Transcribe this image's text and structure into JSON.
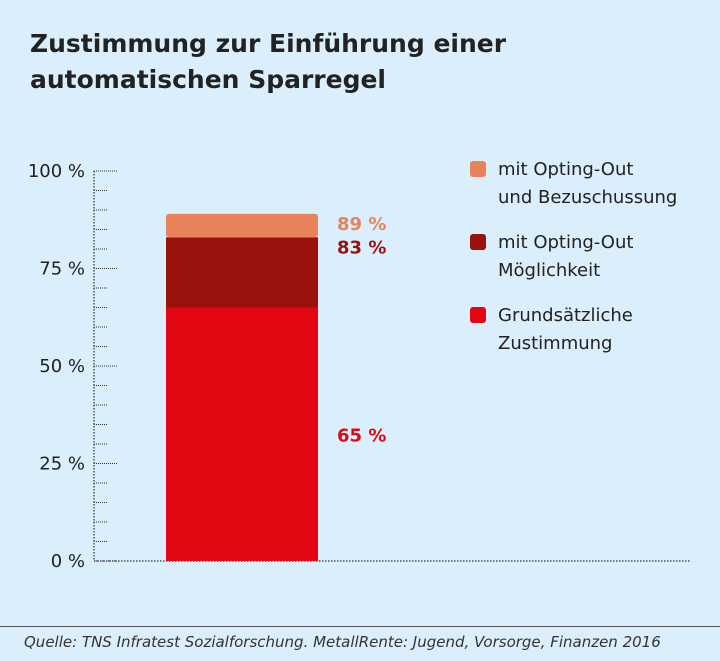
{
  "title_line1": "Zustimmung zur Einführung einer",
  "title_line2": "automatischen Sparregel",
  "source": "Quelle: TNS Infratest Sozialforschung. MetallRente: Jugend, Vorsorge, Finanzen 2016",
  "colors": {
    "background": "#dbeefb",
    "opting_out_bezuschussung": "#e8825a",
    "opting_out_moeglichkeit": "#9b120d",
    "grundsaetzlich": "#e30613",
    "axis": "#333333"
  },
  "chart_data": {
    "type": "bar",
    "stacked": true,
    "title": "Zustimmung zur Einführung einer automatischen Sparregel",
    "ylim": [
      0,
      100
    ],
    "yticks": [
      0,
      25,
      50,
      75,
      100
    ],
    "ytick_labels": [
      "0 %",
      "25 %",
      "50 %",
      "75 %",
      "100 %"
    ],
    "legend_position": "right",
    "series": [
      {
        "name": "Grundsätzliche Zustimmung",
        "legend_lines": [
          "Grundsätzliche",
          "Zustimmung"
        ],
        "value": 65,
        "cumulative": 65,
        "label": "65 %",
        "color": "#e30613"
      },
      {
        "name": "mit Opting-Out Möglichkeit",
        "legend_lines": [
          "mit Opting-Out",
          "Möglichkeit"
        ],
        "value": 18,
        "cumulative": 83,
        "label": "83 %",
        "color": "#9b120d"
      },
      {
        "name": "mit Opting-Out und Bezuschussung",
        "legend_lines": [
          "mit Opting-Out",
          "und Bezuschussung"
        ],
        "value": 6,
        "cumulative": 89,
        "label": "89 %",
        "color": "#e8825a"
      }
    ]
  }
}
